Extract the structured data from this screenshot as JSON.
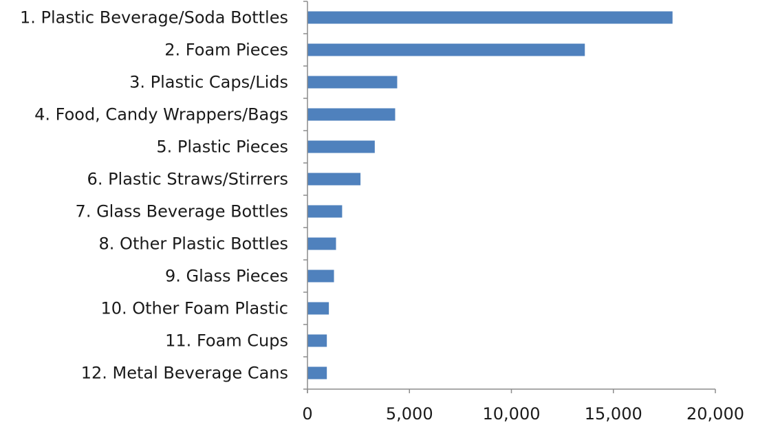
{
  "chart_data": {
    "type": "bar",
    "orientation": "horizontal",
    "categories": [
      "1. Plastic Beverage/Soda Bottles",
      "2. Foam Pieces",
      "3. Plastic Caps/Lids",
      "4. Food, Candy Wrappers/Bags",
      "5. Plastic Pieces",
      "6. Plastic Straws/Stirrers",
      "7. Glass Beverage Bottles",
      "8. Other Plastic Bottles",
      "9. Glass Pieces",
      "10. Other Foam Plastic",
      "11. Foam Cups",
      "12. Metal Beverage Cans"
    ],
    "values": [
      17900,
      13600,
      4400,
      4300,
      3300,
      2600,
      1700,
      1400,
      1300,
      1050,
      950,
      950
    ],
    "xlim": [
      0,
      20000
    ],
    "xticks": [
      0,
      5000,
      10000,
      15000,
      20000
    ],
    "xtick_labels": [
      "0",
      "5,000",
      "10,000",
      "15,000",
      "20,000"
    ],
    "title": "",
    "xlabel": "",
    "ylabel": "",
    "grid": false,
    "legend": "none",
    "bar_color": "#4f81bd",
    "axis_color": "#8c8c8c",
    "text_color": "#1a1a1a"
  }
}
